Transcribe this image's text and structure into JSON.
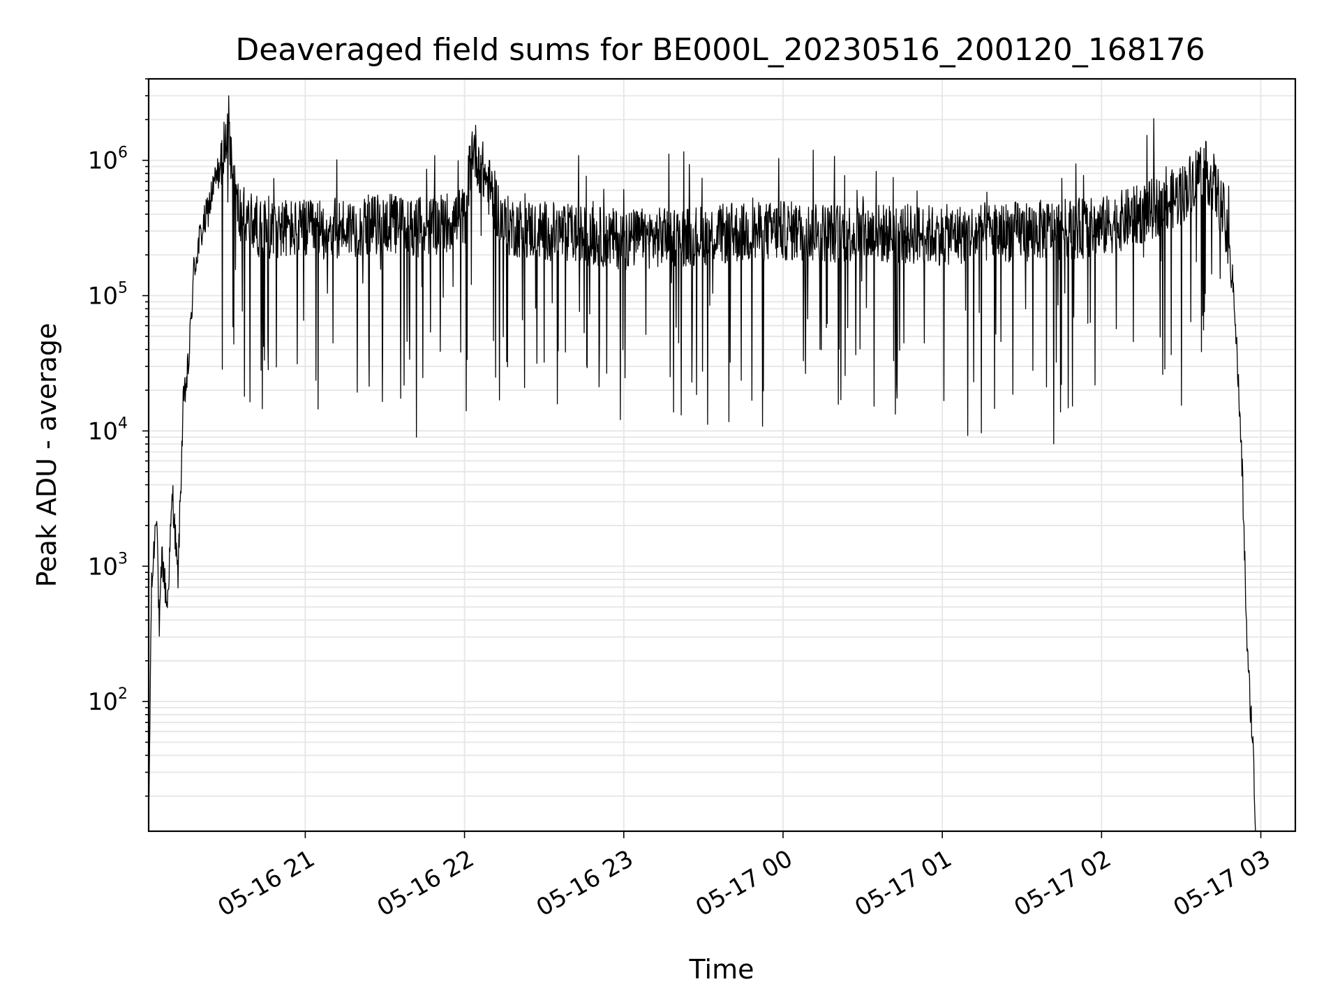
{
  "chart_data": {
    "type": "line",
    "title": "Deaveraged field sums for BE000L_20230516_200120_168176",
    "xlabel": "Time",
    "ylabel": "Peak ADU - average",
    "yscale": "log",
    "ylim": [
      11,
      4000000
    ],
    "xlim": [
      "2023-05-16 20:01",
      "2023-05-17 03:13"
    ],
    "grid": true,
    "line_color": "#000000",
    "grid_color": "#e6e6e6",
    "x_ticks": [
      {
        "label": "05-16 21",
        "t": "2023-05-16 21:00"
      },
      {
        "label": "05-16 22",
        "t": "2023-05-16 22:00"
      },
      {
        "label": "05-16 23",
        "t": "2023-05-16 23:00"
      },
      {
        "label": "05-17 00",
        "t": "2023-05-17 00:00"
      },
      {
        "label": "05-17 01",
        "t": "2023-05-17 01:00"
      },
      {
        "label": "05-17 02",
        "t": "2023-05-17 02:00"
      },
      {
        "label": "05-17 03",
        "t": "2023-05-17 03:00"
      }
    ],
    "y_ticks": [
      {
        "base": "10",
        "exp": "2",
        "value": 100
      },
      {
        "base": "10",
        "exp": "3",
        "value": 1000
      },
      {
        "base": "10",
        "exp": "4",
        "value": 10000
      },
      {
        "base": "10",
        "exp": "5",
        "value": 100000
      },
      {
        "base": "10",
        "exp": "6",
        "value": 1000000
      }
    ],
    "series": [
      {
        "x": [
          "2023-05-16 20:01",
          "2023-05-16 20:02",
          "2023-05-16 20:04",
          "2023-05-16 20:05",
          "2023-05-16 20:06",
          "2023-05-16 20:08",
          "2023-05-16 20:10",
          "2023-05-16 20:12",
          "2023-05-16 20:14",
          "2023-05-16 20:16",
          "2023-05-16 20:18",
          "2023-05-16 20:20",
          "2023-05-16 20:23",
          "2023-05-16 20:26",
          "2023-05-16 20:29",
          "2023-05-16 20:31",
          "2023-05-16 20:33",
          "2023-05-16 20:35",
          "2023-05-16 20:40",
          "2023-05-16 20:45",
          "2023-05-16 20:50",
          "2023-05-16 21:00",
          "2023-05-16 21:15",
          "2023-05-16 21:30",
          "2023-05-16 21:45",
          "2023-05-16 22:00",
          "2023-05-16 22:03",
          "2023-05-16 22:15",
          "2023-05-16 22:30",
          "2023-05-16 22:45",
          "2023-05-16 23:00",
          "2023-05-16 23:30",
          "2023-05-17 00:00",
          "2023-05-17 00:30",
          "2023-05-17 01:00",
          "2023-05-17 01:30",
          "2023-05-17 02:00",
          "2023-05-17 02:15",
          "2023-05-17 02:30",
          "2023-05-17 02:38",
          "2023-05-17 02:42",
          "2023-05-17 02:46",
          "2023-05-17 02:50",
          "2023-05-17 02:53",
          "2023-05-17 02:55",
          "2023-05-17 02:57",
          "2023-05-17 02:58"
        ],
        "y": [
          11,
          600,
          3000,
          300,
          1200,
          500,
          3500,
          800,
          15000,
          30000,
          150000,
          250000,
          400000,
          700000,
          1000000,
          2000000,
          700000,
          400000,
          350000,
          300000,
          320000,
          300000,
          320000,
          340000,
          320000,
          380000,
          1300000,
          330000,
          300000,
          280000,
          260000,
          280000,
          300000,
          290000,
          280000,
          300000,
          320000,
          400000,
          550000,
          900000,
          700000,
          400000,
          100000,
          5000,
          200,
          50,
          11
        ]
      }
    ]
  }
}
